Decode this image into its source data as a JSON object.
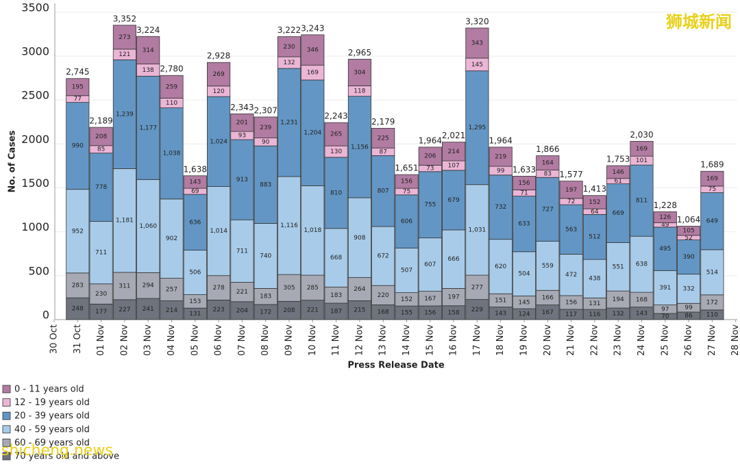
{
  "chart_data": {
    "type": "bar",
    "stacked": true,
    "y_axis_label": "No. of Cases",
    "x_axis_label": "Press Release Date",
    "categories": [
      "30 Oct",
      "31 Oct",
      "01 Nov",
      "02 Nov",
      "03 Nov",
      "04 Nov",
      "05 Nov",
      "06 Nov",
      "07 Nov",
      "08 Nov",
      "09 Nov",
      "10 Nov",
      "11 Nov",
      "12 Nov",
      "13 Nov",
      "14 Nov",
      "15 Nov",
      "16 Nov",
      "17 Nov",
      "18 Nov",
      "19 Nov",
      "20 Nov",
      "21 Nov",
      "22 Nov",
      "23 Nov",
      "24 Nov",
      "25 Nov",
      "26 Nov",
      "27 Nov",
      "28 Nov"
    ],
    "series": [
      {
        "name": "70 years old and above",
        "color": "#6e737d",
        "values": [
          null,
          248,
          177,
          227,
          241,
          214,
          131,
          223,
          204,
          172,
          208,
          221,
          187,
          215,
          168,
          155,
          156,
          158,
          229,
          143,
          124,
          167,
          117,
          116,
          132,
          143,
          70,
          86,
          110,
          null
        ]
      },
      {
        "name": "60 - 69 years old",
        "color": "#a7aab4",
        "values": [
          null,
          283,
          230,
          311,
          294,
          257,
          153,
          278,
          221,
          183,
          305,
          285,
          183,
          264,
          220,
          152,
          167,
          197,
          277,
          151,
          145,
          166,
          156,
          131,
          194,
          168,
          97,
          99,
          172,
          null
        ]
      },
      {
        "name": "40 - 59 years old",
        "color": "#a8cbe9",
        "values": [
          null,
          952,
          711,
          1181,
          1060,
          902,
          506,
          1014,
          711,
          740,
          1116,
          1018,
          668,
          908,
          672,
          507,
          607,
          666,
          1031,
          620,
          504,
          559,
          472,
          438,
          551,
          638,
          391,
          332,
          514,
          null
        ],
        "value_labels": [
          null,
          "952",
          "711",
          "1,181",
          "1,060",
          "902",
          "506",
          "1,014",
          "711",
          "740",
          "1,116",
          "1,018",
          "668",
          "908",
          "672",
          "507",
          "607",
          "666",
          "1,031",
          "620",
          "504",
          "559",
          "472",
          "438",
          "551",
          "638",
          "391",
          "332",
          "514",
          null
        ]
      },
      {
        "name": "20 - 39 years old",
        "color": "#6396c4",
        "values": [
          null,
          990,
          778,
          1239,
          1177,
          1038,
          636,
          1024,
          913,
          883,
          1231,
          1204,
          810,
          1156,
          807,
          606,
          755,
          679,
          1295,
          732,
          633,
          727,
          563,
          512,
          669,
          811,
          495,
          390,
          649,
          null
        ],
        "value_labels": [
          null,
          "990",
          "778",
          "1,239",
          "1,177",
          "1,038",
          "636",
          "1,024",
          "913",
          "883",
          "1,231",
          "1,204",
          "810",
          "1,156",
          "807",
          "606",
          "755",
          "679",
          "1,295",
          "732",
          "633",
          "727",
          "563",
          "512",
          "669",
          "811",
          "495",
          "390",
          "649",
          null
        ]
      },
      {
        "name": "12 - 19 years old",
        "color": "#ebb5d6",
        "values": [
          null,
          77,
          85,
          121,
          138,
          110,
          69,
          120,
          93,
          90,
          132,
          169,
          130,
          118,
          87,
          75,
          73,
          107,
          145,
          99,
          71,
          83,
          72,
          64,
          61,
          101,
          49,
          52,
          75,
          null
        ]
      },
      {
        "name": "0 - 11 years old",
        "color": "#b17ba2",
        "values": [
          null,
          195,
          208,
          273,
          314,
          259,
          143,
          269,
          201,
          239,
          230,
          346,
          265,
          304,
          225,
          156,
          206,
          214,
          343,
          219,
          156,
          164,
          197,
          152,
          146,
          169,
          126,
          105,
          169,
          null
        ]
      }
    ],
    "totals": [
      null,
      2745,
      2189,
      3352,
      3224,
      2780,
      1638,
      2928,
      2343,
      2307,
      3222,
      3243,
      2243,
      2965,
      2179,
      1651,
      1964,
      2021,
      3320,
      1964,
      1633,
      1866,
      1577,
      1413,
      1753,
      2030,
      1228,
      1064,
      1689,
      null
    ],
    "total_labels": [
      null,
      "2,745",
      "2,189",
      "3,352",
      "3,224",
      "2,780",
      "1,638",
      "2,928",
      "2,343",
      "2,307",
      "3,222",
      "3,243",
      "2,243",
      "2,965",
      "2,179",
      "1,651",
      "1,964",
      "2,021",
      "3,320",
      "1,964",
      "1,633",
      "1,866",
      "1,577",
      "1,413",
      "1,753",
      "2,030",
      "1,228",
      "1,064",
      "1,689",
      null
    ],
    "ylim": [
      0,
      3600
    ],
    "yticks": [
      0,
      500,
      1000,
      1500,
      2000,
      2500,
      3000,
      3500
    ],
    "grid": true,
    "legend_position": "bottom-left",
    "watermarks": [
      "狮城新闻",
      "shicheng.news"
    ]
  }
}
